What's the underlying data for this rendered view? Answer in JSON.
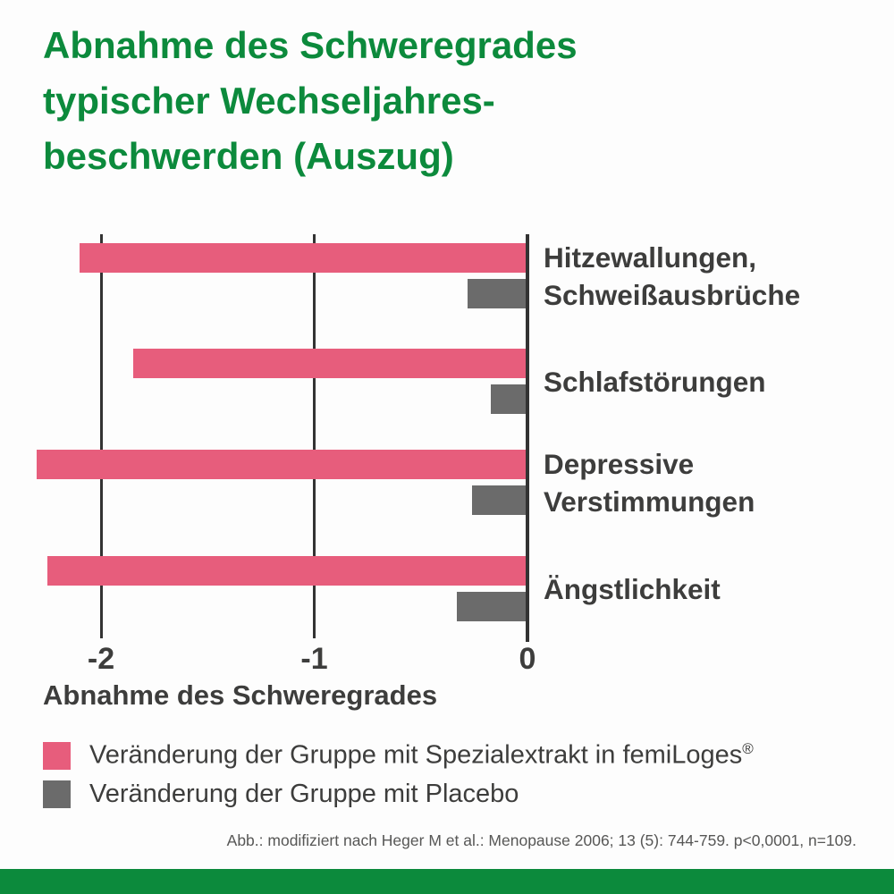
{
  "header": {
    "title_lines": [
      "Abnahme des Schweregrades",
      "typischer Wechseljahres-",
      "beschwerden (Auszug)"
    ]
  },
  "theme": {
    "green": "#0C8A3C",
    "pink": "#E75D7C",
    "gray": "#6B6B6B",
    "ink": "#3D3D3C",
    "axis": "#333333"
  },
  "chart_data": {
    "type": "bar",
    "orientation": "horizontal",
    "title": "Abnahme des Schweregrades typischer Wechseljahresbeschwerden (Auszug)",
    "categories": [
      "Hitzewallungen, Schweißausbrüche",
      "Schlafstörungen",
      "Depressive Verstimmungen",
      "Ängstlichkeit"
    ],
    "category_lines": [
      [
        "Hitzewallungen,",
        "Schweißausbrüche"
      ],
      [
        "Schlafstörungen"
      ],
      [
        "Depressive",
        "Verstimmungen"
      ],
      [
        "Ängstlichkeit"
      ]
    ],
    "series": [
      {
        "name": "Veränderung der Gruppe mit Spezialextrakt in femiLoges®",
        "color": "#E75D7C",
        "values": [
          -2.1,
          -1.85,
          -2.3,
          -2.25
        ]
      },
      {
        "name": "Veränderung der Gruppe mit Placebo",
        "color": "#6B6B6B",
        "values": [
          -0.28,
          -0.17,
          -0.26,
          -0.33
        ]
      }
    ],
    "xlabel": "Abnahme des Schweregrades",
    "x_ticks": [
      "-2",
      "-1",
      "0"
    ],
    "x_tick_values": [
      -2,
      -1,
      0
    ],
    "xlim": [
      -2.45,
      0
    ],
    "grid": "vertical gridlines at ticks, zero axis emphasized",
    "legend_position": "bottom-left"
  },
  "legend": {
    "items": [
      {
        "text": "Veränderung der Gruppe mit Spezialextrakt in femiLoges",
        "sup": "®",
        "color": "#E75D7C"
      },
      {
        "text": "Veränderung der Gruppe mit Placebo",
        "sup": "",
        "color": "#6B6B6B"
      }
    ]
  },
  "footnote": "Abb.: modifiziert nach Heger M et al.: Menopause 2006; 13 (5): 744-759. p<0,0001, n=109."
}
